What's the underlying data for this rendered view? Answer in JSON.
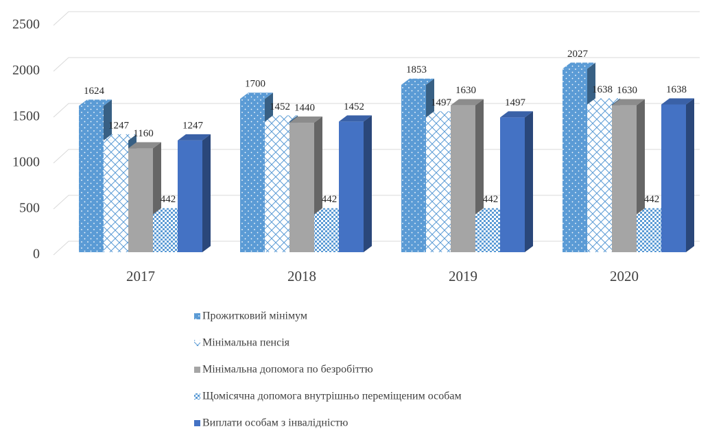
{
  "chart_data": {
    "type": "bar3d",
    "categories": [
      "2017",
      "2018",
      "2019",
      "2020"
    ],
    "series": [
      {
        "name": "Прожитковий мінімум",
        "color": "#5b9bd5",
        "pattern": "dots",
        "values": [
          1624,
          1700,
          1853,
          2027
        ]
      },
      {
        "name": "Мінімальна пенсія",
        "color": "#5b9bd5",
        "pattern": "hatch",
        "values": [
          1247,
          1452,
          1497,
          1638
        ]
      },
      {
        "name": "Мінімальна допомога по безробіттю",
        "color": "#a5a5a5",
        "pattern": "solid",
        "values": [
          1160,
          1440,
          1630,
          1630
        ]
      },
      {
        "name": "Щомісячна допомога внутрішньо переміщеним особам",
        "color": "#5b9bd5",
        "pattern": "checker",
        "values": [
          442,
          442,
          442,
          442
        ]
      },
      {
        "name": "Виплати особам з інвалідністю",
        "color": "#4472c4",
        "pattern": "solid",
        "values": [
          1247,
          1452,
          1497,
          1638
        ]
      }
    ],
    "ylim": [
      0,
      2500
    ],
    "yticks": [
      0,
      500,
      1000,
      1500,
      2000,
      2500
    ],
    "grid": true,
    "legend": "bottom"
  }
}
